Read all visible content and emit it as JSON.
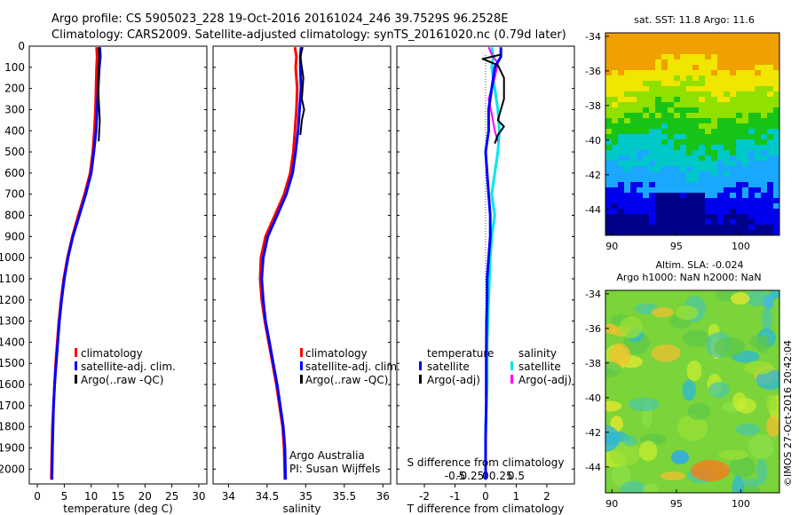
{
  "header": {
    "line1": "Argo profile: CS 5905023_228 19-Oct-2016 20161024_246 39.7529S 96.2528E",
    "line2": "Climatology: CARS2009. Satellite-adjusted climatology: synTS_20161020.nc (0.79d later)"
  },
  "colors": {
    "climatology": "#ff0000",
    "satellite": "#0000ff",
    "argo": "#000000",
    "salinity_satellite": "#00e5ee",
    "salinity_argo": "#ff00ff"
  },
  "credit": {
    "line1": "Argo Australia",
    "line2": "PI: Susan Wijffels"
  },
  "watermark": "©IMOS 27-Oct-2016 20:42:04",
  "chart_data": [
    {
      "id": "temperature",
      "type": "line",
      "xlabel": "temperature (deg C)",
      "ylim": [
        2070,
        0
      ],
      "xlim": [
        -1.5,
        31.5
      ],
      "xticks": [
        "0",
        "5",
        "10",
        "15",
        "20",
        "25",
        "30"
      ],
      "yticks": [
        "0",
        "100",
        "200",
        "300",
        "400",
        "500",
        "600",
        "700",
        "800",
        "900",
        "1000",
        "1100",
        "1200",
        "1300",
        "1400",
        "1500",
        "1600",
        "1700",
        "1800",
        "1900",
        "2000"
      ],
      "legend": [
        "climatology",
        "satellite-adj. clim.",
        "Argo(..raw -QC)"
      ],
      "series": [
        {
          "name": "climatology",
          "x": [
            11.0,
            11.1,
            11.0,
            10.9,
            10.8,
            10.6,
            10.3,
            9.8,
            8.8,
            7.6,
            6.5,
            5.6,
            4.9,
            4.4,
            4.0,
            3.7,
            3.4,
            3.2,
            3.0,
            2.8,
            2.7,
            2.6
          ],
          "y": [
            5,
            50,
            100,
            200,
            300,
            400,
            500,
            600,
            700,
            800,
            900,
            1000,
            1100,
            1200,
            1300,
            1400,
            1500,
            1600,
            1700,
            1800,
            1900,
            2050
          ]
        },
        {
          "name": "satellite-adj. clim.",
          "x": [
            11.6,
            11.7,
            11.5,
            11.3,
            11.1,
            10.9,
            10.5,
            10.0,
            9.0,
            7.8,
            6.6,
            5.7,
            5.0,
            4.5,
            4.1,
            3.8,
            3.5,
            3.2,
            3.0,
            2.9,
            2.8,
            2.7
          ],
          "y": [
            5,
            50,
            100,
            200,
            300,
            400,
            500,
            600,
            700,
            800,
            900,
            1000,
            1100,
            1200,
            1300,
            1400,
            1500,
            1600,
            1700,
            1800,
            1900,
            2050
          ]
        },
        {
          "name": "Argo(..raw -QC)",
          "x": [
            11.4,
            11.5,
            11.4,
            11.3,
            11.5,
            11.6,
            11.5,
            11.4
          ],
          "y": [
            5,
            50,
            100,
            200,
            300,
            350,
            400,
            450
          ]
        }
      ]
    },
    {
      "id": "salinity",
      "type": "line",
      "xlabel": "salinity",
      "ylim": [
        2070,
        0
      ],
      "xlim": [
        33.8,
        36.1
      ],
      "xticks": [
        "34",
        "34.5",
        "35",
        "35.5",
        "36"
      ],
      "legend": [
        "climatology",
        "satellite-adj. clim.",
        "Argo(..raw -QC)"
      ],
      "series": [
        {
          "name": "climatology",
          "x": [
            34.86,
            34.88,
            34.87,
            34.89,
            34.88,
            34.86,
            34.84,
            34.8,
            34.72,
            34.6,
            34.48,
            34.42,
            34.41,
            34.43,
            34.47,
            34.52,
            34.57,
            34.62,
            34.66,
            34.7,
            34.72,
            34.73
          ],
          "y": [
            5,
            50,
            100,
            200,
            300,
            400,
            500,
            600,
            700,
            800,
            900,
            1000,
            1100,
            1200,
            1300,
            1400,
            1500,
            1600,
            1700,
            1800,
            1900,
            2050
          ]
        },
        {
          "name": "satellite-adj. clim.",
          "x": [
            34.94,
            34.93,
            34.93,
            34.94,
            34.92,
            34.9,
            34.87,
            34.83,
            34.75,
            34.63,
            34.51,
            34.45,
            34.43,
            34.45,
            34.48,
            34.53,
            34.58,
            34.63,
            34.67,
            34.71,
            34.73,
            34.74
          ],
          "y": [
            5,
            50,
            100,
            200,
            300,
            400,
            500,
            600,
            700,
            800,
            900,
            1000,
            1100,
            1200,
            1300,
            1400,
            1500,
            1600,
            1700,
            1800,
            1900,
            2050
          ]
        },
        {
          "name": "Argo(..raw -QC)",
          "x": [
            34.96,
            34.93,
            34.97,
            34.95,
            34.98,
            34.95,
            34.93
          ],
          "y": [
            5,
            50,
            150,
            250,
            300,
            350,
            420
          ]
        }
      ]
    },
    {
      "id": "difference",
      "type": "line",
      "xlabel": "T difference from climatology",
      "xlim": [
        -2.9,
        2.9
      ],
      "ylim": [
        2070,
        0
      ],
      "xticks": [
        "-2",
        "-1",
        "0",
        "1",
        "2"
      ],
      "top_label": "S difference from climatology",
      "top_ticks": [
        "-0.5",
        "-0.25",
        "0",
        "0.25",
        "0.5"
      ],
      "legend_titles": [
        "temperature",
        "salinity"
      ],
      "legend": [
        "satellite",
        "Argo(-adj)",
        "satellite",
        "Argo(-adj)"
      ],
      "series": [
        {
          "name": "satellite",
          "x": [
            0.5,
            0.5,
            0.3,
            0.2,
            0.1,
            0.1,
            0.0,
            0.05,
            0.1,
            0.15,
            0.15,
            0.1,
            0.05,
            0.05,
            0.03,
            0.02,
            0.02,
            0.0,
            0.0,
            0.0
          ],
          "y": [
            5,
            50,
            100,
            200,
            300,
            400,
            500,
            600,
            700,
            800,
            900,
            1000,
            1100,
            1200,
            1300,
            1500,
            1700,
            1850,
            1950,
            2050
          ]
        },
        {
          "name": "Argo(-adj)",
          "x": [
            0.5,
            -0.1,
            0.4,
            0.6,
            0.6,
            0.5,
            0.4,
            0.6,
            0.4,
            0.3
          ],
          "y": [
            40,
            60,
            90,
            150,
            250,
            300,
            350,
            380,
            420,
            460
          ]
        },
        {
          "name": "satellite",
          "x": [
            0.2,
            0.25,
            0.2,
            0.3,
            0.4,
            0.45,
            0.4,
            0.3,
            0.2,
            0.3,
            0.2,
            0.15,
            0.1,
            0.05,
            0.05,
            0.0,
            0.0
          ],
          "y": [
            5,
            50,
            100,
            200,
            300,
            400,
            500,
            600,
            700,
            800,
            900,
            1000,
            1200,
            1400,
            1600,
            1800,
            2050
          ]
        },
        {
          "name": "Argo(-adj)",
          "x": [
            0.1,
            0.2,
            0.4,
            0.3,
            0.1,
            0.2,
            0.3,
            0.4
          ],
          "y": [
            5,
            40,
            80,
            150,
            250,
            320,
            400,
            450
          ]
        }
      ]
    },
    {
      "id": "sst_map",
      "type": "heatmap",
      "title": "sat. SST: 11.8 Argo: 11.6",
      "xlim": [
        89.5,
        103
      ],
      "ylim": [
        -45.5,
        -33.8
      ],
      "xticks": [
        "90",
        "95",
        "100"
      ],
      "yticks": [
        "-34",
        "-36",
        "-38",
        "-40",
        "-42",
        "-44"
      ]
    },
    {
      "id": "sla_map",
      "type": "heatmap",
      "title": "Altim. SLA: -0.024",
      "subtitle": "Argo h1000: NaN h2000: NaN",
      "xlim": [
        89.5,
        103
      ],
      "ylim": [
        -45.5,
        -33.8
      ],
      "xticks": [
        "90",
        "95",
        "100"
      ],
      "yticks": [
        "-34",
        "-36",
        "-38",
        "-40",
        "-42",
        "-44"
      ]
    }
  ]
}
